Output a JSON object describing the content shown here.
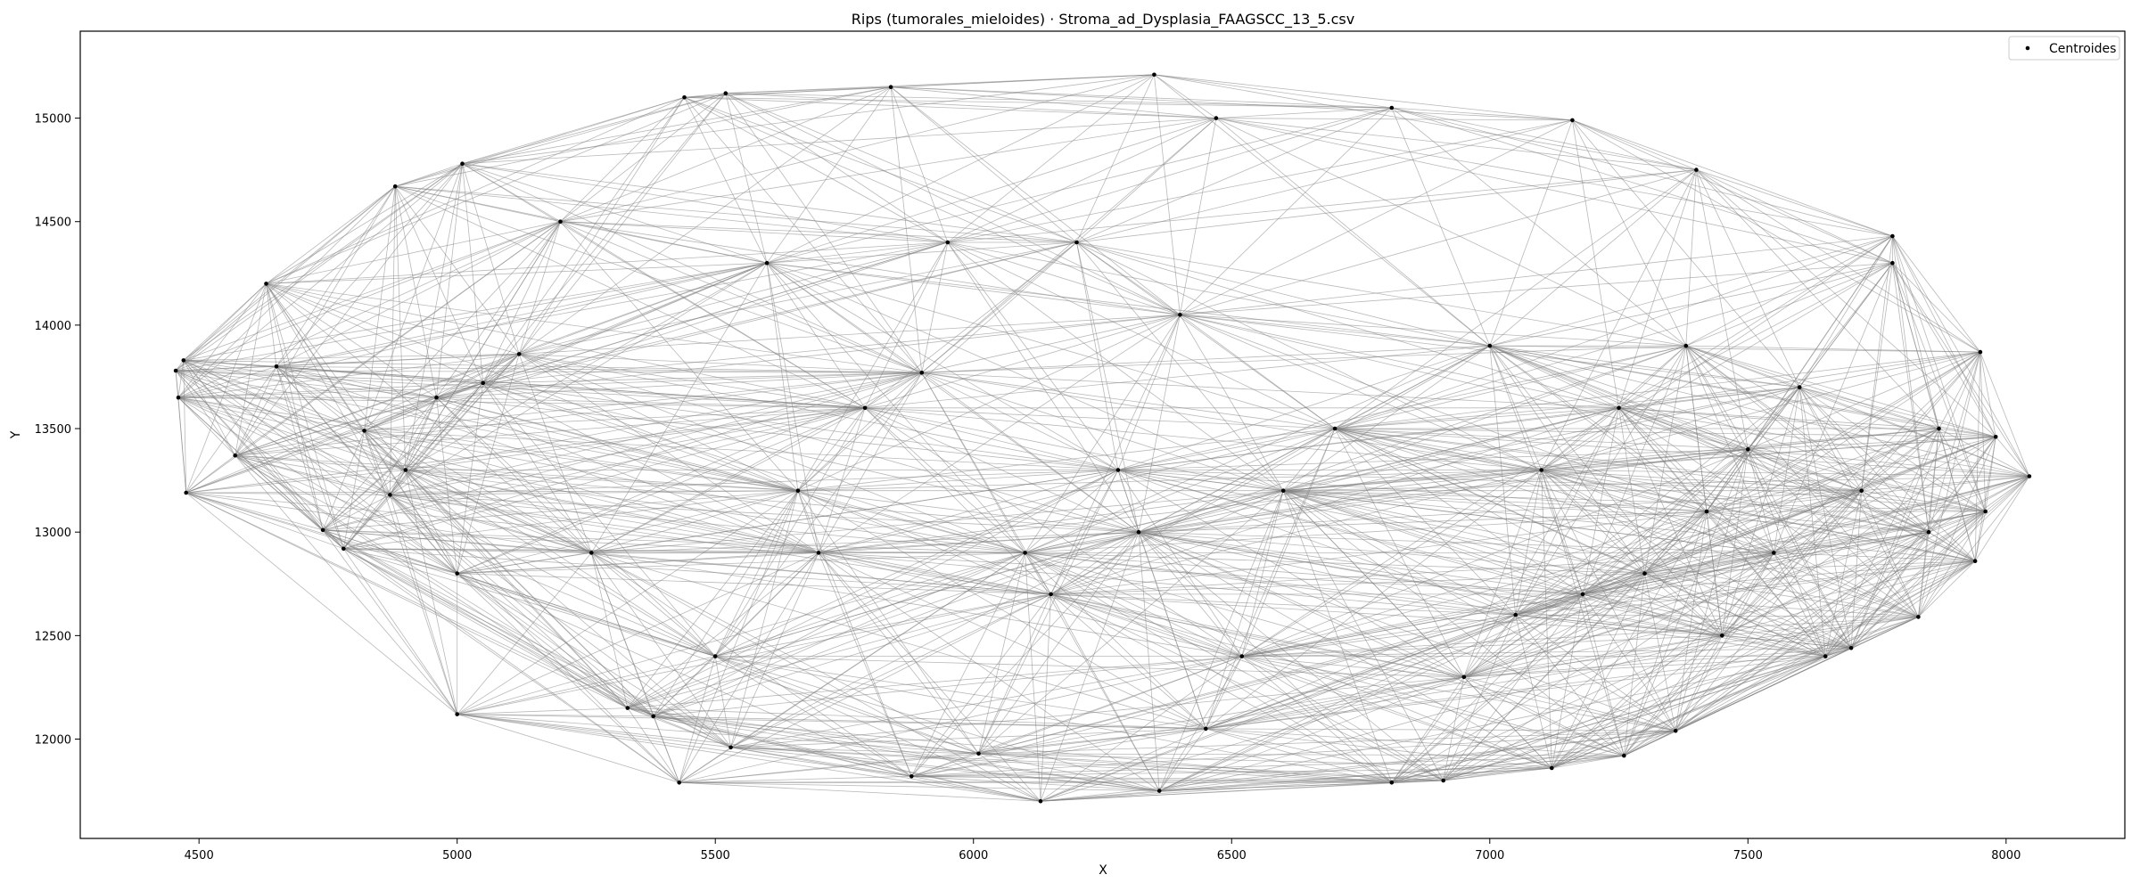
{
  "chart_data": {
    "type": "scatter",
    "title": "Rips (tumorales_mieloides) · Stroma_ad_Dysplasia_FAAGSCC_13_5.csv",
    "xlabel": "X",
    "ylabel": "Y",
    "xlim": [
      4270,
      8230
    ],
    "ylim": [
      11520,
      15420
    ],
    "xticks": [
      4500,
      5000,
      5500,
      6000,
      6500,
      7000,
      7500,
      8000
    ],
    "yticks": [
      12000,
      12500,
      13000,
      13500,
      14000,
      14500,
      15000
    ],
    "grid": false,
    "legend": {
      "position": "top-right",
      "entries": [
        "Centroides"
      ]
    },
    "edge_color": "#808080",
    "point_color": "#000000",
    "series": [
      {
        "name": "Centroides",
        "points": [
          [
            4455,
            13780
          ],
          [
            4460,
            13650
          ],
          [
            4470,
            13830
          ],
          [
            4475,
            13190
          ],
          [
            4570,
            13370
          ],
          [
            4630,
            14200
          ],
          [
            4650,
            13800
          ],
          [
            4740,
            13010
          ],
          [
            4780,
            12920
          ],
          [
            4820,
            13490
          ],
          [
            4870,
            13180
          ],
          [
            4880,
            14670
          ],
          [
            4900,
            13300
          ],
          [
            4960,
            13650
          ],
          [
            5000,
            12800
          ],
          [
            5000,
            12120
          ],
          [
            5010,
            14780
          ],
          [
            5050,
            13720
          ],
          [
            5120,
            13860
          ],
          [
            5200,
            14500
          ],
          [
            5260,
            12900
          ],
          [
            5330,
            12150
          ],
          [
            5380,
            12110
          ],
          [
            5430,
            11790
          ],
          [
            5440,
            15100
          ],
          [
            5500,
            12400
          ],
          [
            5520,
            15120
          ],
          [
            5530,
            11960
          ],
          [
            5600,
            14300
          ],
          [
            5660,
            13200
          ],
          [
            5700,
            12900
          ],
          [
            5790,
            13600
          ],
          [
            5840,
            15150
          ],
          [
            5880,
            11820
          ],
          [
            5900,
            13770
          ],
          [
            5950,
            14400
          ],
          [
            6010,
            11930
          ],
          [
            6100,
            12900
          ],
          [
            6130,
            11700
          ],
          [
            6150,
            12700
          ],
          [
            6200,
            14400
          ],
          [
            6280,
            13300
          ],
          [
            6320,
            13000
          ],
          [
            6350,
            15210
          ],
          [
            6360,
            11750
          ],
          [
            6400,
            14050
          ],
          [
            6450,
            12050
          ],
          [
            6470,
            15000
          ],
          [
            6520,
            12400
          ],
          [
            6600,
            13200
          ],
          [
            6700,
            13500
          ],
          [
            6810,
            11790
          ],
          [
            6810,
            15050
          ],
          [
            6910,
            11800
          ],
          [
            6950,
            12300
          ],
          [
            7000,
            13900
          ],
          [
            7050,
            12600
          ],
          [
            7100,
            13300
          ],
          [
            7120,
            11860
          ],
          [
            7160,
            14990
          ],
          [
            7180,
            12700
          ],
          [
            7250,
            13600
          ],
          [
            7260,
            11920
          ],
          [
            7300,
            12800
          ],
          [
            7360,
            12040
          ],
          [
            7380,
            13900
          ],
          [
            7400,
            14750
          ],
          [
            7420,
            13100
          ],
          [
            7450,
            12500
          ],
          [
            7500,
            13400
          ],
          [
            7550,
            12900
          ],
          [
            7600,
            13700
          ],
          [
            7650,
            12400
          ],
          [
            7700,
            12440
          ],
          [
            7720,
            13200
          ],
          [
            7780,
            14430
          ],
          [
            7780,
            14300
          ],
          [
            7830,
            12590
          ],
          [
            7850,
            13000
          ],
          [
            7870,
            13500
          ],
          [
            7940,
            12860
          ],
          [
            7950,
            13870
          ],
          [
            7960,
            13100
          ],
          [
            7980,
            13460
          ],
          [
            8045,
            13270
          ]
        ]
      }
    ]
  }
}
